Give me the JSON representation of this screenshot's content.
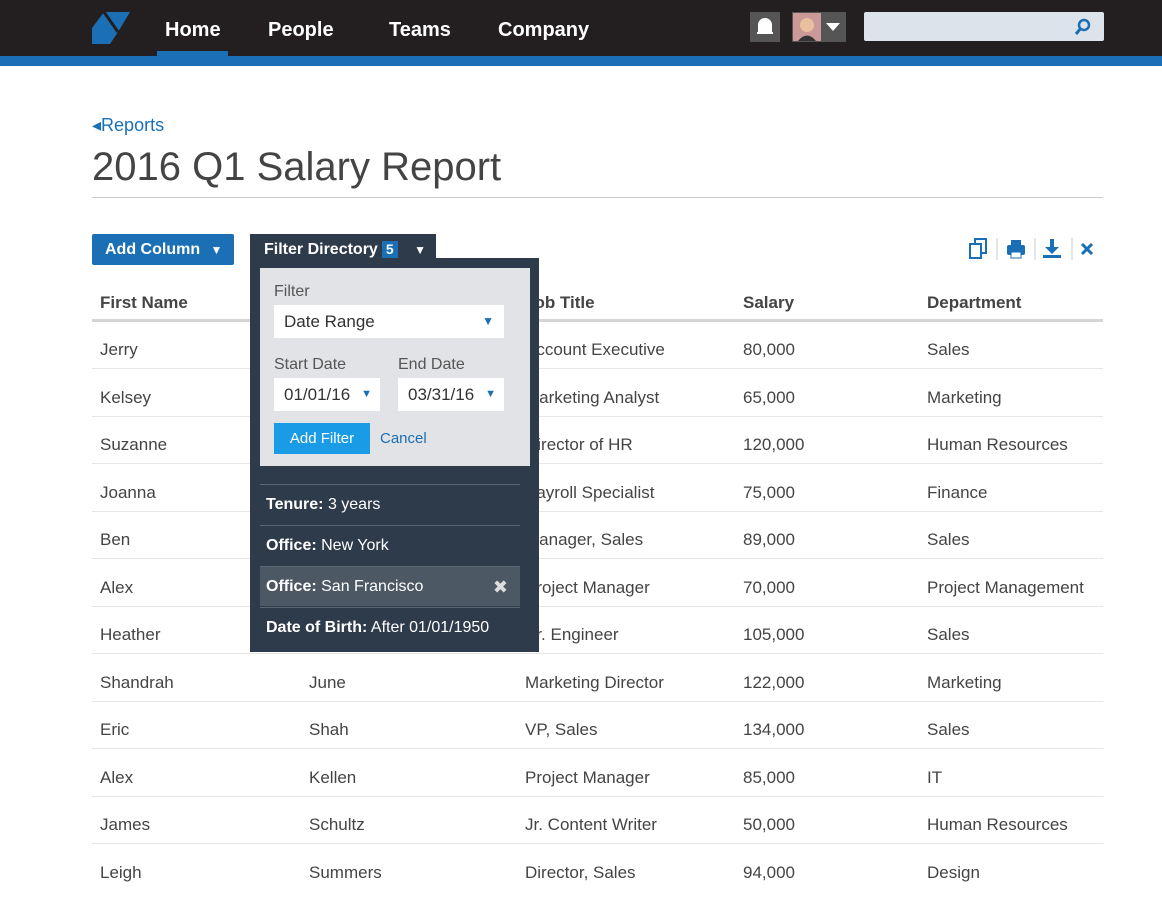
{
  "nav": {
    "items": [
      "Home",
      "People",
      "Teams",
      "Company"
    ]
  },
  "breadcrumb": "Reports",
  "title": "2016 Q1 Salary Report",
  "toolbar": {
    "add_column": "Add Column",
    "filter_directory": "Filter Directory",
    "filter_count": 5
  },
  "table": {
    "headers": [
      "First Name",
      null,
      "Job Title",
      "Salary",
      "Department"
    ],
    "rows": [
      [
        "Jerry",
        null,
        "Account Executive",
        "80,000",
        "Sales"
      ],
      [
        "Kelsey",
        null,
        "Marketing Analyst",
        "65,000",
        "Marketing"
      ],
      [
        "Suzanne",
        null,
        "Director of HR",
        "120,000",
        "Human Resources"
      ],
      [
        "Joanna",
        null,
        "Payroll Specialist",
        "75,000",
        "Finance"
      ],
      [
        "Ben",
        null,
        "Manager, Sales",
        "89,000",
        "Sales"
      ],
      [
        "Alex",
        null,
        "Project Manager",
        "70,000",
        "Project Management"
      ],
      [
        "Heather",
        null,
        "Sr. Engineer",
        "105,000",
        "Sales"
      ],
      [
        "Shandrah",
        "June",
        "Marketing Director",
        "122,000",
        "Marketing"
      ],
      [
        "Eric",
        "Shah",
        "VP, Sales",
        "134,000",
        "Sales"
      ],
      [
        "Alex",
        "Kellen",
        "Project Manager",
        "85,000",
        "IT"
      ],
      [
        "James",
        "Schultz",
        "Jr. Content Writer",
        "50,000",
        "Human Resources"
      ],
      [
        "Leigh",
        "Summers",
        "Director, Sales",
        "94,000",
        "Design"
      ]
    ]
  },
  "filter_panel": {
    "filter_label": "Filter",
    "filter_select": "Date Range",
    "start_label": "Start Date",
    "end_label": "End Date",
    "start_value": "01/01/16",
    "end_value": "03/31/16",
    "add_button": "Add Filter",
    "cancel": "Cancel",
    "active_filters": [
      {
        "label": "Tenure:",
        "value": "3 years"
      },
      {
        "label": "Office:",
        "value": "New York"
      },
      {
        "label": "Office:",
        "value": "San Francisco"
      },
      {
        "label": "Date of Birth:",
        "value": "After 01/01/1950"
      }
    ]
  }
}
